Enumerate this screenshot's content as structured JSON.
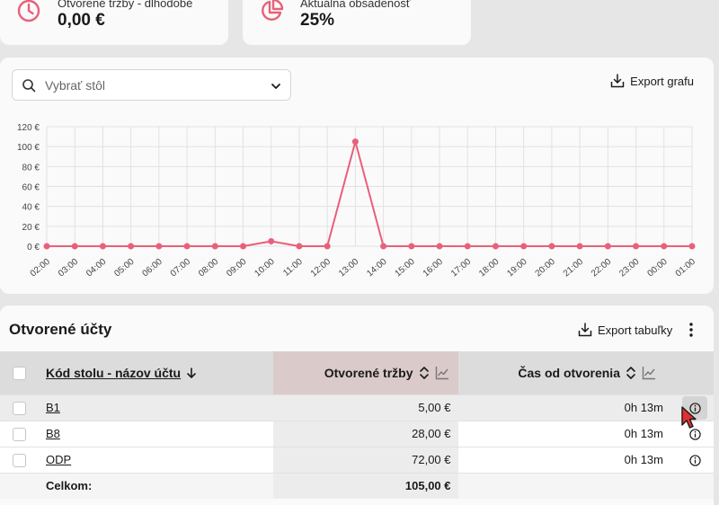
{
  "kpis": [
    {
      "title": "Otvorené tržby - dlhodobé",
      "value": "0,00 €",
      "icon": "clock-icon"
    },
    {
      "title": "Aktuálna obsadenosť",
      "value": "25%",
      "icon": "pie-chart-icon"
    }
  ],
  "chart_section": {
    "select_placeholder": "Vybrať stôl",
    "export_label": "Export grafu"
  },
  "chart_data": {
    "type": "line",
    "x": [
      "02:00",
      "03:00",
      "04:00",
      "05:00",
      "06:00",
      "07:00",
      "08:00",
      "09:00",
      "10:00",
      "11:00",
      "12:00",
      "13:00",
      "14:00",
      "15:00",
      "16:00",
      "17:00",
      "18:00",
      "19:00",
      "20:00",
      "21:00",
      "22:00",
      "23:00",
      "00:00",
      "01:00"
    ],
    "values": [
      0,
      0,
      0,
      0,
      0,
      0,
      0,
      0,
      5,
      0,
      0,
      105,
      0,
      0,
      0,
      0,
      0,
      0,
      0,
      0,
      0,
      0,
      0,
      0
    ],
    "yticks": [
      "0 €",
      "20 €",
      "40 €",
      "60 €",
      "80 €",
      "100 €",
      "120 €"
    ],
    "ylim": [
      0,
      120
    ],
    "grid": true,
    "color": "#e8607a"
  },
  "table_section": {
    "title": "Otvorené účty",
    "export_label": "Export tabuľky",
    "headers": {
      "code": "Kód stolu - názov účtu",
      "sales": "Otvorené tržby",
      "time": "Čas od otvorenia"
    },
    "rows": [
      {
        "code": "B1",
        "sales": "5,00 €",
        "time": "0h 13m"
      },
      {
        "code": "B8",
        "sales": "28,00 €",
        "time": "0h 13m"
      },
      {
        "code": "ODP",
        "sales": "72,00 €",
        "time": "0h 13m"
      }
    ],
    "total_label": "Celkom:",
    "total_value": "105,00 €"
  },
  "colors": {
    "accent": "#e8607a",
    "sales_header": "#dbcaca"
  }
}
